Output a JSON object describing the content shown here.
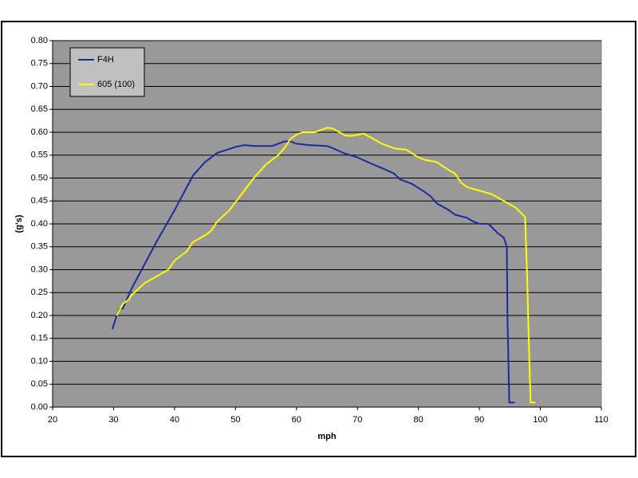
{
  "chart_data": {
    "type": "line",
    "xlabel": "mph",
    "ylabel": "(g's)",
    "xlim": [
      20,
      110
    ],
    "xticks": [
      20,
      30,
      40,
      50,
      60,
      70,
      80,
      90,
      100,
      110
    ],
    "ylim": [
      0,
      0.8
    ],
    "yticks": [
      {
        "value": 0,
        "label": "0.00"
      },
      {
        "value": 0.05,
        "label": "0.05"
      },
      {
        "value": 0.1,
        "label": "0.10"
      },
      {
        "value": 0.15,
        "label": "0.15"
      },
      {
        "value": 0.2,
        "label": "0.20"
      },
      {
        "value": 0.25,
        "label": "0.25"
      },
      {
        "value": 0.3,
        "label": "0.30"
      },
      {
        "value": 0.35,
        "label": "0.35"
      },
      {
        "value": 0.4,
        "label": "0.40"
      },
      {
        "value": 0.45,
        "label": "0.45"
      },
      {
        "value": 0.5,
        "label": "0.50"
      },
      {
        "value": 0.55,
        "label": "0.55"
      },
      {
        "value": 0.6,
        "label": "0.60"
      },
      {
        "value": 0.65,
        "label": "0.65"
      },
      {
        "value": 0.7,
        "label": "0.70"
      },
      {
        "value": 0.75,
        "label": "0.75"
      },
      {
        "value": 0.8,
        "label": "0.80"
      }
    ],
    "grid": true,
    "legend": "top-left",
    "series": [
      {
        "name": "F4H",
        "color": "#1c2aa0",
        "x": [
          29.8,
          30.5,
          31,
          31.5,
          32,
          33,
          35,
          37,
          40,
          42,
          43,
          45,
          47,
          50,
          51.5,
          53,
          56,
          58,
          59,
          60,
          62,
          65,
          66,
          68,
          70,
          72,
          74,
          76,
          77,
          79,
          81,
          82,
          83,
          85,
          86,
          88,
          89,
          90,
          91.5,
          93,
          94,
          94.5,
          94.6,
          94.9,
          95.8
        ],
        "values": [
          0.17,
          0.2,
          0.215,
          0.215,
          0.23,
          0.26,
          0.31,
          0.36,
          0.43,
          0.48,
          0.505,
          0.535,
          0.555,
          0.568,
          0.572,
          0.57,
          0.57,
          0.58,
          0.58,
          0.575,
          0.572,
          0.57,
          0.565,
          0.553,
          0.545,
          0.533,
          0.522,
          0.51,
          0.497,
          0.487,
          0.47,
          0.46,
          0.445,
          0.43,
          0.42,
          0.413,
          0.405,
          0.4,
          0.4,
          0.38,
          0.37,
          0.35,
          0.2,
          0.01,
          0.01
        ]
      },
      {
        "name": "605 (100)",
        "color": "#ffff00",
        "x": [
          30.5,
          31.5,
          32.5,
          33,
          35,
          37,
          39,
          40,
          42,
          43,
          45,
          46,
          47,
          49,
          51,
          53,
          55,
          57,
          58,
          59,
          60,
          61,
          63,
          65,
          66,
          68,
          69,
          71,
          72,
          74,
          76,
          77,
          78,
          80,
          81,
          83,
          85,
          86,
          87,
          88,
          92,
          94,
          96,
          97.5,
          97.8,
          98.2,
          98.4,
          99.2
        ],
        "values": [
          0.2,
          0.225,
          0.235,
          0.245,
          0.27,
          0.285,
          0.3,
          0.32,
          0.34,
          0.36,
          0.375,
          0.385,
          0.405,
          0.43,
          0.465,
          0.5,
          0.53,
          0.55,
          0.565,
          0.585,
          0.595,
          0.6,
          0.6,
          0.61,
          0.608,
          0.593,
          0.592,
          0.597,
          0.59,
          0.575,
          0.565,
          0.563,
          0.562,
          0.545,
          0.54,
          0.535,
          0.517,
          0.51,
          0.49,
          0.48,
          0.465,
          0.45,
          0.435,
          0.415,
          0.3,
          0.1,
          0.01,
          0.01
        ]
      }
    ]
  }
}
